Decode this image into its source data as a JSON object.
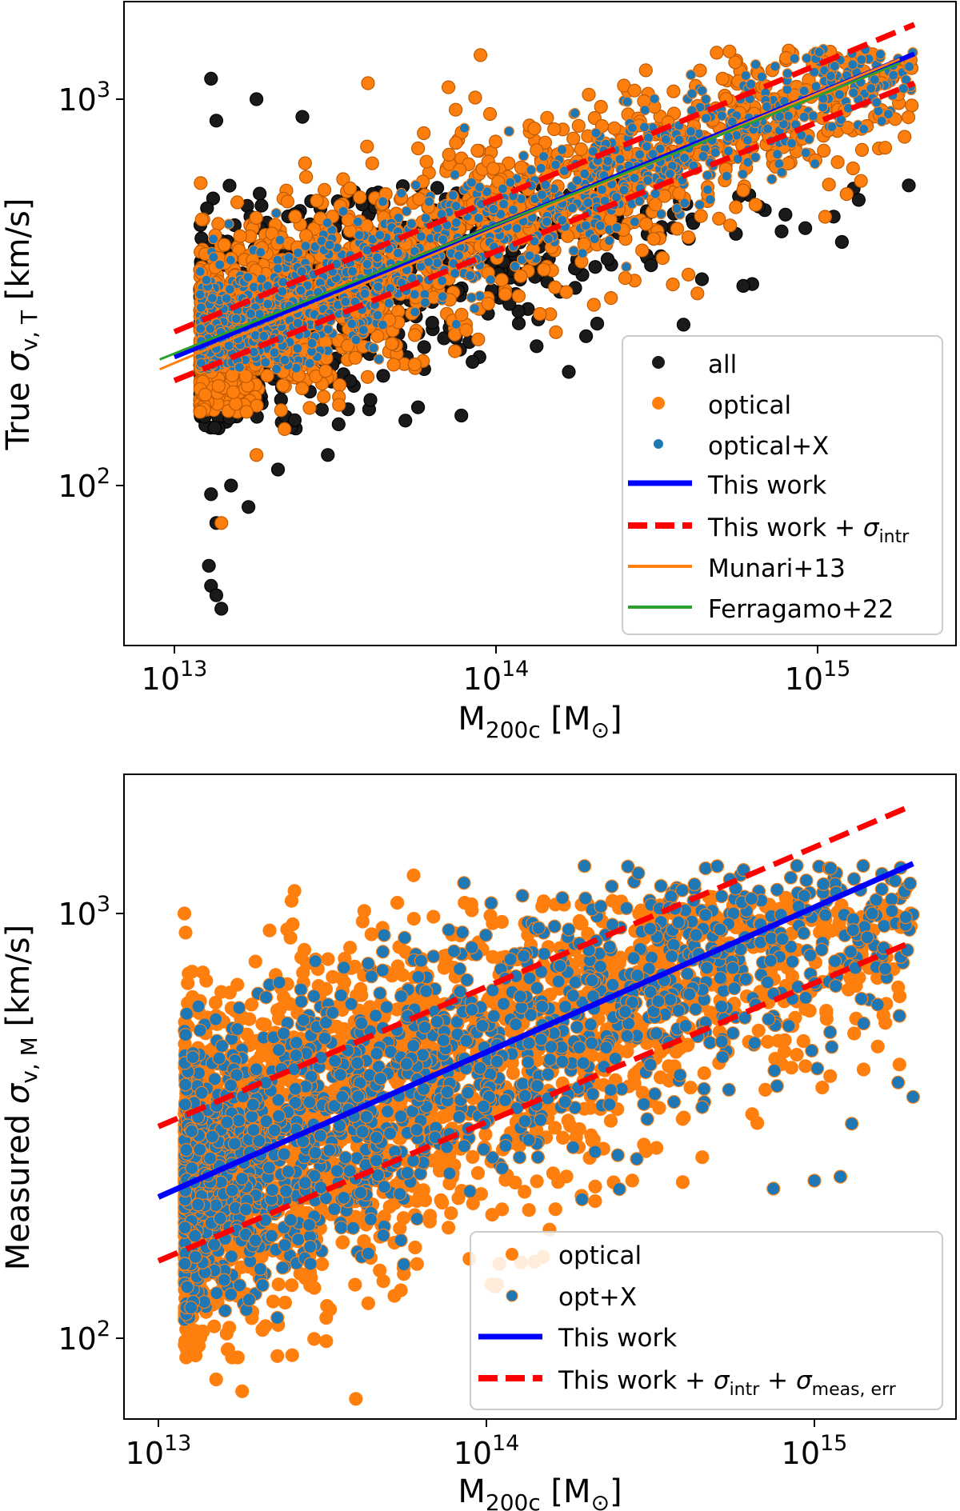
{
  "chart_data": [
    {
      "type": "scatter",
      "panel": "top",
      "xscale": "log",
      "yscale": "log",
      "xlim": [
        7000000000000.0,
        2800000000000000.0
      ],
      "ylim": [
        44,
        1760
      ],
      "xticks": [
        {
          "value": 10000000000000.0,
          "base": "10",
          "exp": "13"
        },
        {
          "value": 100000000000000.0,
          "base": "10",
          "exp": "14"
        },
        {
          "value": 1000000000000000.0,
          "base": "10",
          "exp": "15"
        }
      ],
      "yticks": [
        {
          "value": 100,
          "base": "10",
          "exp": "2"
        },
        {
          "value": 1000,
          "base": "10",
          "exp": "3"
        }
      ],
      "xlabel": {
        "main": "M",
        "sub": "200c",
        "unit_open": " [M",
        "unit_sym": "⊙",
        "unit_close": "]"
      },
      "ylabel": {
        "prefix": "True ",
        "sym": "σ",
        "sub": "v, T",
        "unit": " [km/s]"
      },
      "legend_position": "lower-right",
      "series": [
        {
          "name": "all",
          "kind": "points",
          "color": "#1a1a1a",
          "edge": "#000000",
          "n": 1100,
          "ymin": 140,
          "ymax": 600,
          "scatter": 0.16,
          "outliers": [
            [
              13000000000000.0,
              1130
            ],
            [
              13500000000000.0,
              880
            ],
            [
              18000000000000.0,
              1000
            ],
            [
              25000000000000.0,
              900
            ],
            [
              13000000000000.0,
              95
            ],
            [
              13500000000000.0,
              80
            ],
            [
              17000000000000.0,
              88
            ],
            [
              12800000000000.0,
              62
            ],
            [
              13000000000000.0,
              55
            ],
            [
              13500000000000.0,
              52
            ],
            [
              14000000000000.0,
              48
            ],
            [
              15000000000000.0,
              100
            ],
            [
              21000000000000.0,
              110
            ],
            [
              30000000000000.0,
              120
            ]
          ]
        },
        {
          "name": "optical",
          "kind": "points",
          "color": "#ff7f0e",
          "edge": "#c05a00",
          "n": 1500,
          "ymin": 155,
          "ymax": 1350,
          "scatter": 0.13,
          "outliers": [
            [
              40000000000000.0,
              1100
            ],
            [
              14000000000000.0,
              80
            ],
            [
              18000000000000.0,
              120
            ],
            [
              22000000000000.0,
              140
            ]
          ]
        },
        {
          "name": "optical+X",
          "kind": "points",
          "color": "#1f77b4",
          "edge": "#ff7f0e",
          "n": 1300,
          "ymin": 200,
          "ymax": 1350,
          "scatter": 0.08,
          "outliers": []
        },
        {
          "name": "This work",
          "kind": "line",
          "color": "#0000ff",
          "style": "solid",
          "width": 6,
          "x": [
            10000000000000.0,
            2000000000000000.0
          ],
          "y": [
            215,
            1310
          ]
        },
        {
          "name": "This work + σintr",
          "kind": "line",
          "color": "#ff0000",
          "style": "dashed",
          "width": 7,
          "x": [
            10000000000000.0,
            2000000000000000.0
          ],
          "y": [
            [
              250,
              1560
            ],
            [
              187,
              1100
            ]
          ]
        },
        {
          "name": "Munari+13",
          "kind": "line",
          "color": "#ff7f0e",
          "style": "solid",
          "width": 3,
          "x": [
            9000000000000.0,
            1800000000000000.0
          ],
          "y": [
            200,
            1270
          ]
        },
        {
          "name": "Ferragamo+22",
          "kind": "line",
          "color": "#2ca02c",
          "style": "solid",
          "width": 3,
          "x": [
            9000000000000.0,
            1800000000000000.0
          ],
          "y": [
            212,
            1240
          ]
        }
      ],
      "legend": [
        {
          "label": "all",
          "marker": "dot-black"
        },
        {
          "label": "optical",
          "marker": "dot-orange"
        },
        {
          "label": "optical+X",
          "marker": "dot-blue"
        },
        {
          "label": "This work",
          "marker": "line-blue"
        },
        {
          "label": "This work + ",
          "sym": "σ",
          "sub": "intr",
          "marker": "dash-red"
        },
        {
          "label": "Munari+13",
          "marker": "line-orange"
        },
        {
          "label": "Ferragamo+22",
          "marker": "line-green"
        }
      ]
    },
    {
      "type": "scatter",
      "panel": "bottom",
      "xscale": "log",
      "yscale": "log",
      "xlim": [
        7600000000000.0,
        2800000000000000.0
      ],
      "ylim": [
        64,
        2100
      ],
      "xticks": [
        {
          "value": 10000000000000.0,
          "base": "10",
          "exp": "13"
        },
        {
          "value": 100000000000000.0,
          "base": "10",
          "exp": "14"
        },
        {
          "value": 1000000000000000.0,
          "base": "10",
          "exp": "15"
        }
      ],
      "yticks": [
        {
          "value": 100,
          "base": "10",
          "exp": "2"
        },
        {
          "value": 1000,
          "base": "10",
          "exp": "3"
        }
      ],
      "xlabel": {
        "main": "M",
        "sub": "200c",
        "unit_open": " [M",
        "unit_sym": "⊙",
        "unit_close": "]"
      },
      "ylabel": {
        "prefix": "Measured ",
        "sym": "σ",
        "sub": "v, M",
        "unit": " [km/s]"
      },
      "legend_position": "lower-right",
      "series": [
        {
          "name": "optical",
          "kind": "points",
          "color": "#ff7f0e",
          "edge": "#ff7f0e",
          "n": 2300,
          "ymin": 90,
          "ymax": 1100,
          "scatter": 0.2,
          "outliers": [
            [
              18000000000000.0,
              75
            ],
            [
              15000000000000.0,
              80
            ],
            [
              40000000000000.0,
              72
            ],
            [
              60000000000000.0,
              1230
            ],
            [
              26000000000000.0,
              1130
            ],
            [
              220000000000000.0,
              1000
            ],
            [
              1800000000000000.0,
              670
            ],
            [
              12000000000000.0,
              1000
            ]
          ]
        },
        {
          "name": "opt+X",
          "kind": "points",
          "color": "#1f77b4",
          "edge": "#ff7f0e",
          "n": 1800,
          "ymin": 110,
          "ymax": 1300,
          "scatter": 0.15,
          "outliers": [
            [
              270000000000000.0,
              1290
            ],
            [
              1500000000000000.0,
              1000
            ],
            [
              1900000000000000.0,
              980
            ],
            [
              1800000000000000.0,
              400
            ],
            [
              2000000000000000.0,
              370
            ],
            [
              1300000000000000.0,
              320
            ],
            [
              1000000000000000.0,
              235
            ],
            [
              750000000000000.0,
              225
            ],
            [
              1200000000000000.0,
              240
            ]
          ]
        },
        {
          "name": "This work",
          "kind": "line",
          "color": "#0000ff",
          "style": "solid",
          "width": 7,
          "x": [
            10000000000000.0,
            2000000000000000.0
          ],
          "y": [
            215,
            1310
          ]
        },
        {
          "name": "This work + σintr + σmeas, err",
          "kind": "line",
          "color": "#ff0000",
          "style": "dashed",
          "width": 7,
          "x": [
            10000000000000.0,
            2000000000000000.0
          ],
          "y": [
            [
              315,
              1800
            ],
            [
              152,
              860
            ]
          ]
        }
      ],
      "legend": [
        {
          "label": "optical",
          "marker": "dot-orange"
        },
        {
          "label": "opt+X",
          "marker": "dot-blue"
        },
        {
          "label": "This work",
          "marker": "line-blue"
        },
        {
          "label": "This work + ",
          "sym": "σ",
          "sub": "intr",
          "label2": " + ",
          "sym2": "σ",
          "sub2": "meas, err",
          "marker": "dash-red"
        }
      ]
    }
  ]
}
